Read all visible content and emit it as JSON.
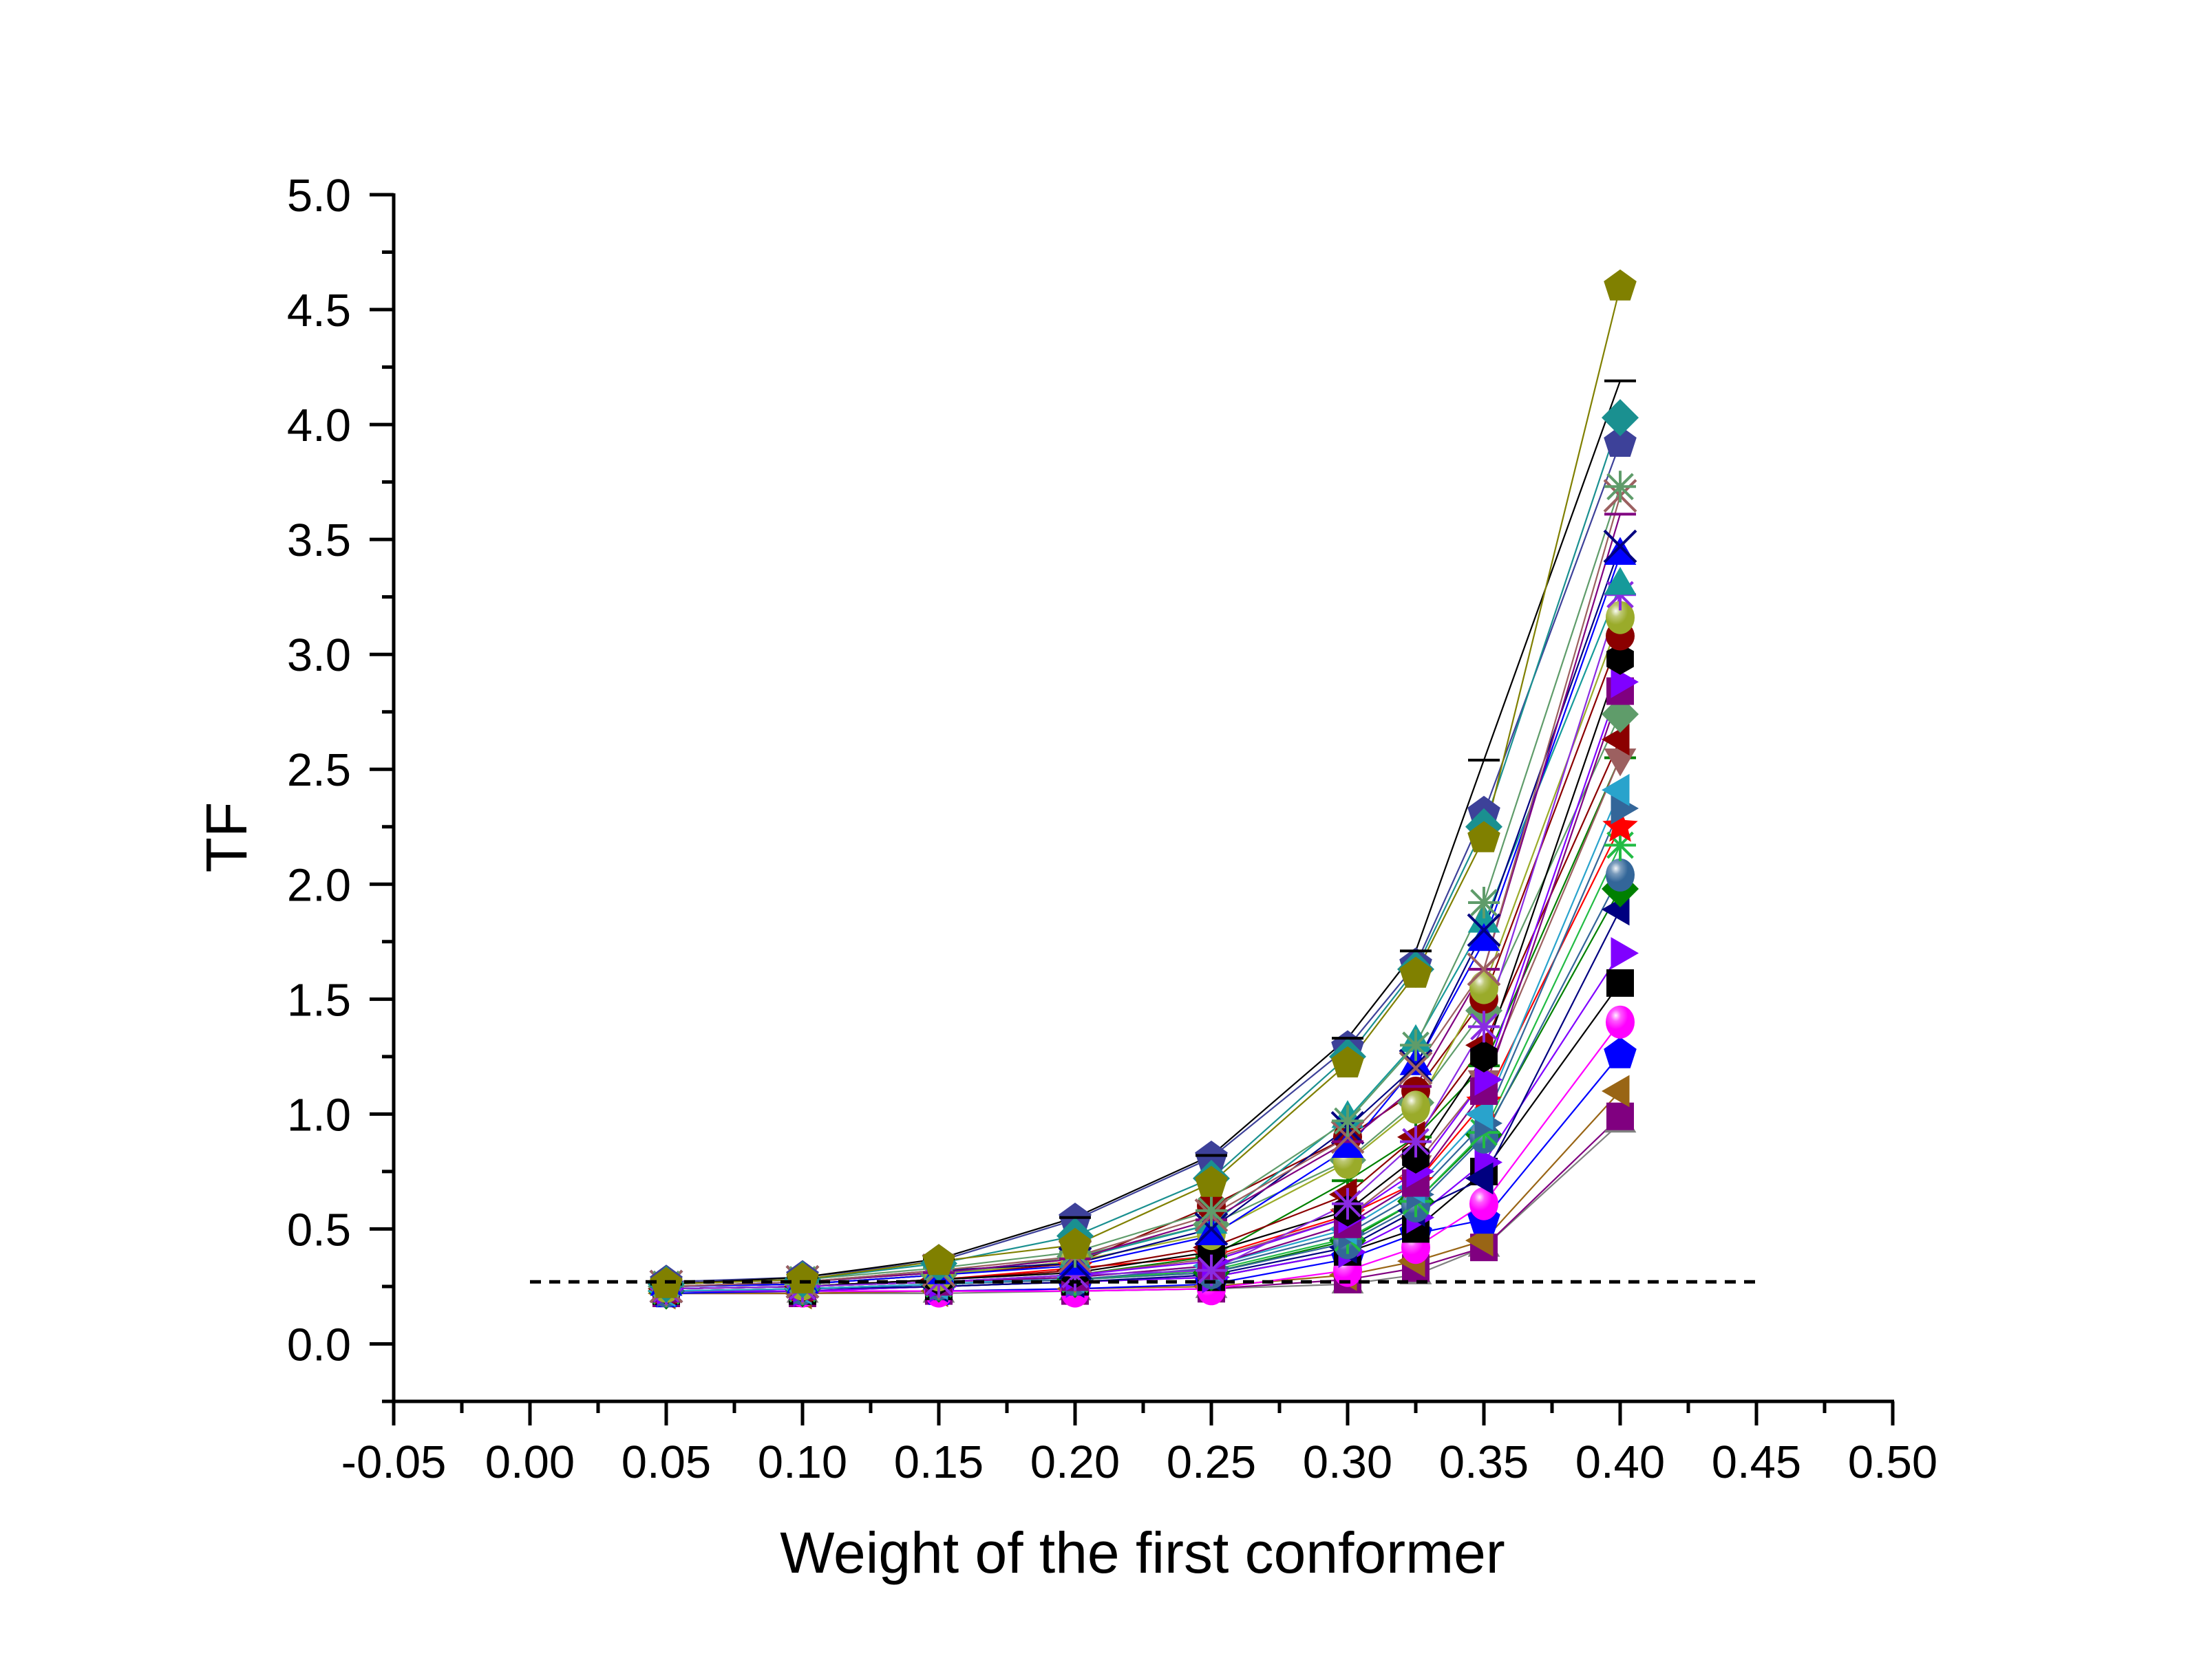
{
  "chart_data": {
    "type": "line",
    "title": "",
    "xlabel": "Weight of the first conformer",
    "ylabel": "TF",
    "xlim": [
      -0.05,
      0.5
    ],
    "ylim": [
      -0.25,
      5.0
    ],
    "grid": false,
    "legend": "none",
    "x_ticks": [
      "-0.05",
      "0.00",
      "0.05",
      "0.10",
      "0.15",
      "0.20",
      "0.25",
      "0.30",
      "0.35",
      "0.40",
      "0.45",
      "0.50"
    ],
    "x_tick_values": [
      -0.05,
      0.0,
      0.05,
      0.1,
      0.15,
      0.2,
      0.25,
      0.3,
      0.35,
      0.4,
      0.45,
      0.5
    ],
    "y_ticks": [
      "0.0",
      "0.5",
      "1.0",
      "1.5",
      "2.0",
      "2.5",
      "3.0",
      "3.5",
      "4.0",
      "4.5",
      "5.0"
    ],
    "y_tick_values": [
      0.0,
      0.5,
      1.0,
      1.5,
      2.0,
      2.5,
      3.0,
      3.5,
      4.0,
      4.5,
      5.0
    ],
    "reference_line": {
      "y": 0.27,
      "x_range": [
        0.0,
        0.45
      ],
      "style": "dashed",
      "color": "#000000"
    },
    "x": [
      0.05,
      0.1,
      0.15,
      0.2,
      0.25,
      0.3,
      0.325,
      0.35,
      0.4
    ],
    "series": [
      {
        "color": "#808000",
        "marker": "pentagon",
        "values": [
          0.26,
          0.28,
          0.36,
          0.43,
          0.7,
          1.22,
          1.61,
          2.2,
          4.6
        ]
      },
      {
        "color": "#000000",
        "marker": "hbar",
        "values": [
          0.26,
          0.29,
          0.37,
          0.55,
          0.82,
          1.33,
          1.71,
          2.54,
          4.19
        ]
      },
      {
        "color": "#1a9090",
        "marker": "diamond",
        "values": [
          0.26,
          0.28,
          0.35,
          0.47,
          0.72,
          1.25,
          1.63,
          2.25,
          4.03
        ]
      },
      {
        "color": "#3d4199",
        "marker": "pentagon",
        "values": [
          0.27,
          0.29,
          0.36,
          0.54,
          0.81,
          1.29,
          1.65,
          2.31,
          3.92
        ]
      },
      {
        "color": "#5f9c6a",
        "marker": "asterisk",
        "values": [
          0.26,
          0.28,
          0.33,
          0.4,
          0.58,
          0.97,
          1.3,
          1.92,
          3.73
        ]
      },
      {
        "color": "#9c6060",
        "marker": "x",
        "values": [
          0.25,
          0.27,
          0.32,
          0.38,
          0.56,
          0.9,
          1.2,
          1.63,
          3.69
        ]
      },
      {
        "color": "#800080",
        "marker": "hbar",
        "values": [
          0.25,
          0.27,
          0.31,
          0.37,
          0.54,
          0.88,
          1.12,
          1.63,
          3.61
        ]
      },
      {
        "color": "#000080",
        "marker": "x",
        "values": [
          0.25,
          0.27,
          0.32,
          0.35,
          0.5,
          0.94,
          1.21,
          1.8,
          3.47
        ]
      },
      {
        "color": "#0000ff",
        "marker": "triangle-up",
        "values": [
          0.25,
          0.26,
          0.3,
          0.34,
          0.47,
          0.85,
          1.21,
          1.75,
          3.43
        ]
      },
      {
        "color": "#169a9a",
        "marker": "triangle-up",
        "values": [
          0.25,
          0.27,
          0.31,
          0.37,
          0.52,
          0.98,
          1.31,
          1.83,
          3.3
        ]
      },
      {
        "color": "#8a2be2",
        "marker": "asterisk",
        "values": [
          0.24,
          0.25,
          0.27,
          0.3,
          0.32,
          0.61,
          0.88,
          1.38,
          3.26
        ]
      },
      {
        "color": "#9aab2a",
        "marker": "sphere",
        "values": [
          0.25,
          0.26,
          0.3,
          0.36,
          0.48,
          0.79,
          1.03,
          1.55,
          3.16
        ]
      },
      {
        "color": "#8b0000",
        "marker": "circle",
        "values": [
          0.25,
          0.26,
          0.3,
          0.35,
          0.6,
          0.9,
          1.1,
          1.5,
          3.08
        ]
      },
      {
        "color": "#000000",
        "marker": "hexagon",
        "values": [
          0.24,
          0.25,
          0.28,
          0.31,
          0.4,
          0.58,
          0.81,
          1.25,
          2.98
        ]
      },
      {
        "color": "#8000ff",
        "marker": "triangle-right",
        "values": [
          0.24,
          0.25,
          0.27,
          0.3,
          0.36,
          0.55,
          0.75,
          1.15,
          2.88
        ]
      },
      {
        "color": "#800080",
        "marker": "square",
        "values": [
          0.24,
          0.25,
          0.27,
          0.29,
          0.34,
          0.52,
          0.7,
          1.1,
          2.84
        ]
      },
      {
        "color": "#5f9c6a",
        "marker": "diamond",
        "values": [
          0.25,
          0.26,
          0.3,
          0.38,
          0.52,
          0.8,
          1.05,
          1.45,
          2.74
        ]
      },
      {
        "color": "#8b0000",
        "marker": "triangle-left",
        "values": [
          0.24,
          0.25,
          0.28,
          0.32,
          0.42,
          0.65,
          0.9,
          1.3,
          2.63
        ]
      },
      {
        "color": "#9c6060",
        "marker": "triangle-down",
        "values": [
          0.24,
          0.25,
          0.27,
          0.3,
          0.37,
          0.55,
          0.78,
          1.15,
          2.55
        ]
      },
      {
        "color": "#008000",
        "marker": "plus",
        "values": [
          0.24,
          0.25,
          0.27,
          0.3,
          0.38,
          0.71,
          0.9,
          1.21,
          2.55
        ]
      },
      {
        "color": "#29a3cc",
        "marker": "triangle-left",
        "values": [
          0.23,
          0.24,
          0.26,
          0.29,
          0.34,
          0.5,
          0.68,
          1.0,
          2.41
        ]
      },
      {
        "color": "#336699",
        "marker": "triangle-right",
        "values": [
          0.23,
          0.24,
          0.26,
          0.28,
          0.33,
          0.48,
          0.65,
          0.96,
          2.33
        ]
      },
      {
        "color": "#ff0000",
        "marker": "star",
        "values": [
          0.24,
          0.25,
          0.28,
          0.33,
          0.38,
          0.56,
          0.7,
          1.05,
          2.25
        ]
      },
      {
        "color": "#22bb44",
        "marker": "asterisk",
        "values": [
          0.23,
          0.24,
          0.26,
          0.28,
          0.32,
          0.46,
          0.62,
          0.92,
          2.17
        ]
      },
      {
        "color": "#336699",
        "marker": "sphere",
        "values": [
          0.23,
          0.24,
          0.26,
          0.28,
          0.31,
          0.44,
          0.6,
          0.9,
          2.04
        ]
      },
      {
        "color": "#008000",
        "marker": "diamond",
        "values": [
          0.23,
          0.24,
          0.26,
          0.28,
          0.31,
          0.45,
          0.62,
          0.91,
          1.98
        ]
      },
      {
        "color": "#000080",
        "marker": "triangle-left",
        "values": [
          0.23,
          0.24,
          0.25,
          0.27,
          0.3,
          0.42,
          0.58,
          0.72,
          1.89
        ]
      },
      {
        "color": "#8000ff",
        "marker": "triangle-right",
        "values": [
          0.23,
          0.23,
          0.25,
          0.27,
          0.29,
          0.4,
          0.55,
          0.79,
          1.7
        ]
      },
      {
        "color": "#000000",
        "marker": "square",
        "values": [
          0.23,
          0.23,
          0.25,
          0.27,
          0.29,
          0.4,
          0.5,
          0.75,
          1.57
        ]
      },
      {
        "color": "#ff00ff",
        "marker": "sphere",
        "values": [
          0.23,
          0.23,
          0.23,
          0.23,
          0.24,
          0.32,
          0.42,
          0.61,
          1.4
        ]
      },
      {
        "color": "#0000ff",
        "marker": "pentagon",
        "values": [
          0.22,
          0.23,
          0.23,
          0.24,
          0.26,
          0.37,
          0.48,
          0.54,
          1.26
        ]
      },
      {
        "color": "#996515",
        "marker": "triangle-left",
        "values": [
          0.22,
          0.22,
          0.23,
          0.24,
          0.25,
          0.3,
          0.36,
          0.45,
          1.1
        ]
      },
      {
        "color": "#800080",
        "marker": "square",
        "values": [
          0.22,
          0.22,
          0.23,
          0.23,
          0.24,
          0.28,
          0.33,
          0.42,
          0.99
        ]
      },
      {
        "color": "#808080",
        "marker": "triangle-up",
        "values": [
          0.22,
          0.22,
          0.22,
          0.23,
          0.24,
          0.26,
          0.3,
          0.42,
          0.96
        ]
      }
    ]
  }
}
